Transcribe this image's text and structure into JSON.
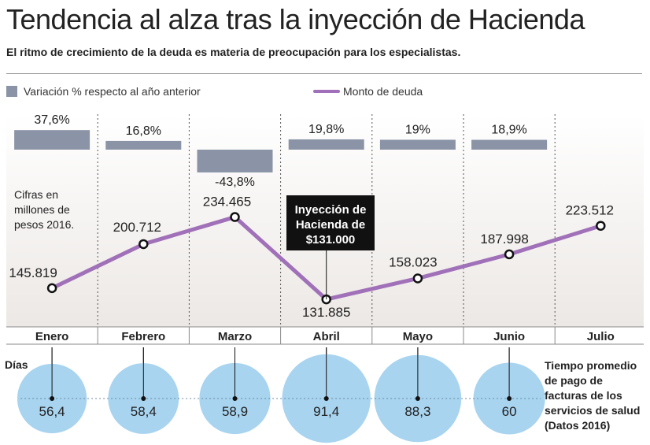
{
  "header": {
    "title": "Tendencia al alza tras la inyección de Hacienda",
    "subtitle": "El ritmo de crecimiento de la deuda es materia de preocupación para los especialistas."
  },
  "legend": {
    "bars_label": "Variación % respecto al año anterior",
    "line_label": "Monto de deuda"
  },
  "note": "Cifras en millones de pesos 2016.",
  "annotation": "Inyección de Hacienda de $131.000",
  "days_label": "Días",
  "payment_label": "Tiempo promedio de pago de facturas de los servicios de salud (Datos 2016)",
  "colors": {
    "bar": "#8a94a6",
    "line": "#a070b8",
    "bubble": "#a8d4f0",
    "background_gradient_top": "#ffffff",
    "background_gradient_bottom": "#ece8e5",
    "annotation_bg": "#111111"
  },
  "chart_data": [
    {
      "type": "bar",
      "name": "Variación % respecto al año anterior",
      "categories": [
        "Enero",
        "Febrero",
        "Marzo",
        "Abril",
        "Mayo",
        "Junio"
      ],
      "values": [
        37.6,
        16.8,
        -43.8,
        19.8,
        19,
        18.9
      ],
      "labels": [
        "37,6%",
        "16,8%",
        "-43,8%",
        "19,8%",
        "19%",
        "18,9%"
      ]
    },
    {
      "type": "line",
      "name": "Monto de deuda",
      "categories": [
        "Enero",
        "Febrero",
        "Marzo",
        "Abril",
        "Mayo",
        "Junio",
        "Julio"
      ],
      "values": [
        145819,
        200712,
        234465,
        131885,
        158023,
        187998,
        223512
      ],
      "labels": [
        "145.819",
        "200.712",
        "234.465",
        "131.885",
        "158.023",
        "187.998",
        "223.512"
      ]
    },
    {
      "type": "bubble",
      "name": "Días",
      "categories": [
        "Enero",
        "Febrero",
        "Marzo",
        "Abril",
        "Mayo",
        "Junio"
      ],
      "values": [
        56.4,
        58.4,
        58.9,
        91.4,
        88.3,
        60
      ],
      "labels": [
        "56,4",
        "58,4",
        "58,9",
        "91,4",
        "88,3",
        "60"
      ]
    }
  ]
}
